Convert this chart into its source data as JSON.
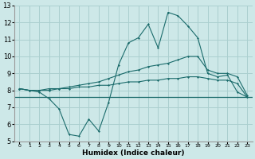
{
  "xlabel": "Humidex (Indice chaleur)",
  "xlim": [
    -0.5,
    23.5
  ],
  "ylim": [
    5,
    13
  ],
  "xticks": [
    0,
    1,
    2,
    3,
    4,
    5,
    6,
    7,
    8,
    9,
    10,
    11,
    12,
    13,
    14,
    15,
    16,
    17,
    18,
    19,
    20,
    21,
    22,
    23
  ],
  "yticks": [
    5,
    6,
    7,
    8,
    9,
    10,
    11,
    12,
    13
  ],
  "bg_color": "#cde8e8",
  "grid_color": "#aacfcf",
  "line_color": "#1a6b6b",
  "line1_x": [
    0,
    1,
    2,
    3,
    4,
    5,
    6,
    7,
    8,
    9,
    10,
    11,
    12,
    13,
    14,
    15,
    16,
    17,
    18,
    19,
    20,
    21,
    22,
    23
  ],
  "line1_y": [
    8.1,
    8.0,
    7.9,
    7.5,
    6.9,
    5.4,
    5.3,
    6.3,
    5.6,
    7.3,
    9.5,
    10.8,
    11.1,
    11.9,
    10.5,
    12.6,
    12.4,
    11.8,
    11.1,
    9.0,
    8.8,
    8.9,
    7.9,
    7.6
  ],
  "line2_x": [
    0,
    1,
    2,
    3,
    4,
    5,
    6,
    7,
    8,
    9,
    10,
    11,
    12,
    13,
    14,
    15,
    16,
    17,
    18,
    19,
    20,
    21,
    22,
    23
  ],
  "line2_y": [
    8.1,
    8.0,
    8.0,
    8.1,
    8.1,
    8.2,
    8.3,
    8.4,
    8.5,
    8.7,
    8.9,
    9.1,
    9.2,
    9.4,
    9.5,
    9.6,
    9.8,
    10.0,
    10.0,
    9.2,
    9.0,
    9.0,
    8.8,
    7.7
  ],
  "line3_x": [
    0,
    1,
    2,
    3,
    4,
    5,
    6,
    7,
    8,
    9,
    10,
    11,
    12,
    13,
    14,
    15,
    16,
    17,
    18,
    19,
    20,
    21,
    22,
    23
  ],
  "line3_y": [
    8.1,
    8.0,
    8.0,
    8.0,
    8.1,
    8.1,
    8.2,
    8.2,
    8.3,
    8.3,
    8.4,
    8.5,
    8.5,
    8.6,
    8.6,
    8.7,
    8.7,
    8.8,
    8.8,
    8.7,
    8.6,
    8.6,
    8.4,
    7.6
  ],
  "flat_y": 7.6
}
